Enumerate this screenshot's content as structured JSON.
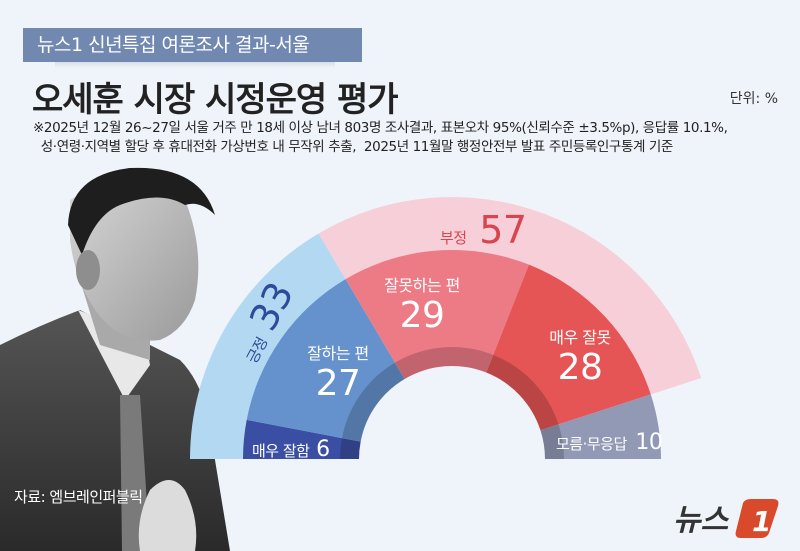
{
  "header": {
    "banner": "뉴스1 신년특집 여론조사 결과-서울",
    "title": "오세훈 시장 시정운영 평가",
    "unit": "단위: %",
    "note_line1": "※2025년 12월 26~27일 서울 거주 만 18세 이상 남녀 803명 조사결과, 표본오차 95%(신뢰수준 ±3.5%p), 응답률 10.1%,",
    "note_line2": "  성·연령·지역별 할당 후 휴대전화 가상번호 내 무작위 추출,  2025년 11월말 행정안전부 발표 주민등록인구통계 기준"
  },
  "footer": {
    "source": "자료: 엠브레인퍼블릭",
    "logo_text": "뉴스",
    "logo_mark": "1"
  },
  "labels": {
    "positive": "긍정",
    "positive_value": "33",
    "negative": "부정",
    "negative_value": "57",
    "very_good": "매우 잘함",
    "very_good_value": "6",
    "good": "잘하는 편",
    "good_value": "27",
    "bad": "잘못하는 편",
    "bad_value": "29",
    "very_bad": "매우 잘못",
    "very_bad_value": "28",
    "dk": "모름·무응답",
    "dk_value": "10"
  },
  "colors": {
    "background": "#eff3fa",
    "banner": "#7189b1",
    "positive_outer": "#b3d9f2",
    "negative_outer": "#f7cfd9",
    "very_good": "#3a4fa3",
    "good": "#6592cc",
    "bad": "#ec7b86",
    "very_bad": "#e55555",
    "dk": "#9199b5",
    "positive_text": "#2d4b9a",
    "negative_text": "#d9454f",
    "logo_red": "#d9492b"
  },
  "chart_data": {
    "type": "pie",
    "subtype": "half-donut (two rings)",
    "title": "오세훈 시장 시정운영 평가",
    "unit": "%",
    "inner_ring": {
      "categories": [
        "매우 잘함",
        "잘하는 편",
        "잘못하는 편",
        "매우 잘못",
        "모름·무응답"
      ],
      "values": [
        6,
        27,
        29,
        28,
        10
      ]
    },
    "outer_ring": {
      "categories": [
        "긍정",
        "부정"
      ],
      "values": [
        33,
        57
      ]
    },
    "source": "엠브레인퍼블릭",
    "legend": "none (direct labels)"
  }
}
